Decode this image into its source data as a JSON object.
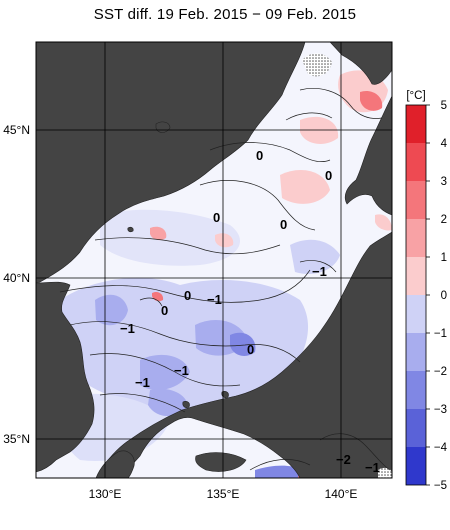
{
  "title": "SST diff. 19 Feb. 2015 − 09 Feb. 2015",
  "lat_labels": [
    "45°N",
    "40°N",
    "35°N"
  ],
  "lon_labels": [
    "130°E",
    "135°E",
    "140°E"
  ],
  "colorbar": {
    "unit": "[°C]",
    "ticks": [
      "5",
      "4",
      "3",
      "2",
      "1",
      "0",
      "−1",
      "−2",
      "−3",
      "−4",
      "−5"
    ],
    "colors": [
      "#e0202a",
      "#ee4a52",
      "#f4767b",
      "#f8a2a5",
      "#fbcccd",
      "#ffffff",
      "#cfd2f6",
      "#a8adee",
      "#8087e4",
      "#5a62d8",
      "#2f38cc"
    ]
  },
  "contour_labels": [
    {
      "text": "0"
    },
    {
      "text": "0"
    },
    {
      "text": "0"
    },
    {
      "text": "0"
    },
    {
      "text": "0"
    },
    {
      "text": "0"
    },
    {
      "text": "0"
    },
    {
      "text": "−1"
    },
    {
      "text": "−1"
    },
    {
      "text": "−1"
    },
    {
      "text": "−1"
    },
    {
      "text": "−1"
    },
    {
      "text": "−2"
    },
    {
      "text": "−1"
    }
  ],
  "colors": {
    "land": "#444444",
    "sea_neutral": "#ffffff",
    "grid": "#000000"
  }
}
